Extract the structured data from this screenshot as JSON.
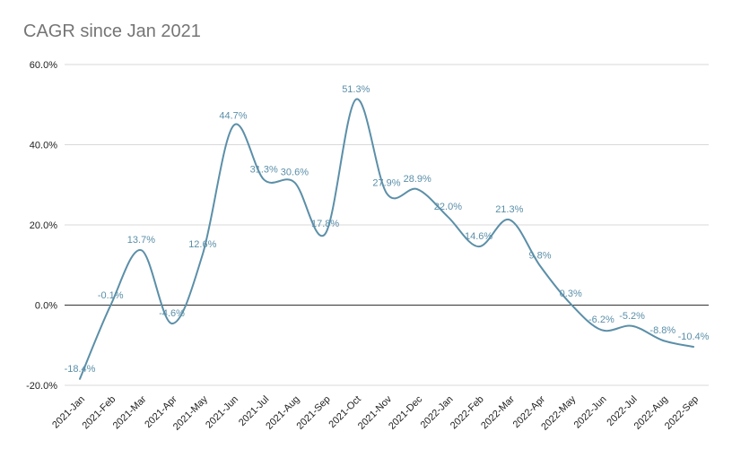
{
  "chart_data": {
    "type": "line",
    "title": "CAGR since Jan 2021",
    "xlabel": "",
    "ylabel": "",
    "categories": [
      "2021-Jan",
      "2021-Feb",
      "2021-Mar",
      "2021-Apr",
      "2021-May",
      "2021-Jun",
      "2021-Jul",
      "2021-Aug",
      "2021-Sep",
      "2021-Oct",
      "2021-Nov",
      "2021-Dec",
      "2022-Jan",
      "2022-Feb",
      "2022-Mar",
      "2022-Apr",
      "2022-May",
      "2022-Jun",
      "2022-Jul",
      "2022-Aug",
      "2022-Sep"
    ],
    "series": [
      {
        "values": [
          -18.4,
          -0.1,
          13.7,
          -4.6,
          12.6,
          44.7,
          31.3,
          30.6,
          17.8,
          51.3,
          27.9,
          28.9,
          22.0,
          14.6,
          21.3,
          9.8,
          0.3,
          -6.2,
          -5.2,
          -8.8,
          -10.4
        ],
        "labels": [
          "-18.4%",
          "-0.1%",
          "13.7%",
          "-4.6%",
          "12.6%",
          "44.7%",
          "31.3%",
          "30.6%",
          "17.8%",
          "51.3%",
          "27.9%",
          "28.9%",
          "22.0%",
          "14.6%",
          "21.3%",
          "9.8%",
          "0.3%",
          "-6.2%",
          "-5.2%",
          "-8.8%",
          "-10.4%"
        ]
      }
    ],
    "ylim": [
      -20,
      60
    ],
    "yticks": [
      -20,
      0,
      20,
      40,
      60
    ],
    "ytick_labels": [
      "-20.0%",
      "0.0%",
      "20.0%",
      "40.0%",
      "60.0%"
    ],
    "grid": true,
    "legend": "none",
    "colors": {
      "line": "#5b8fa8",
      "label": "#5b8fa8",
      "grid": "#d9d9d9",
      "zero": "#333333",
      "axis_text": "#222222",
      "title": "#757575"
    }
  }
}
